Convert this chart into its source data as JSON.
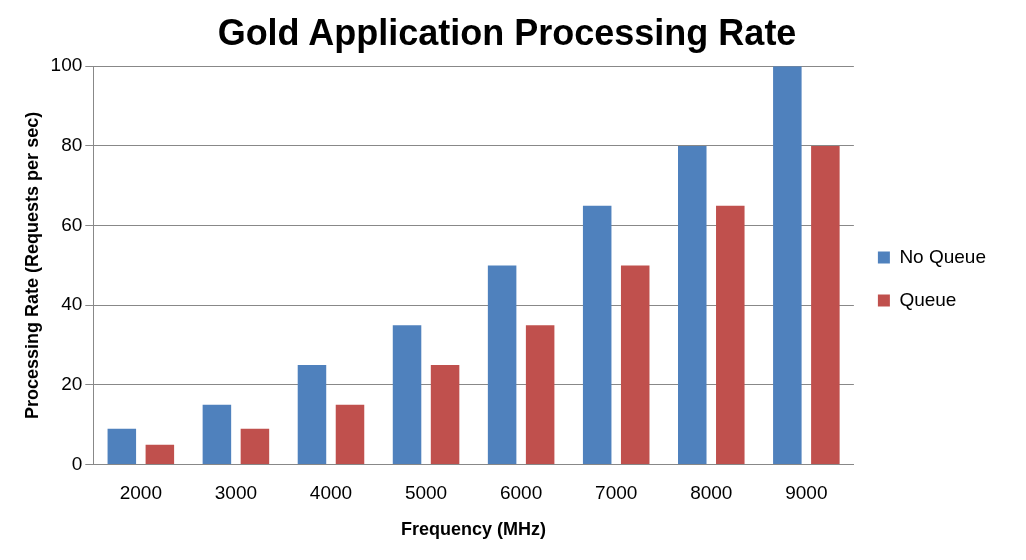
{
  "chart_data": {
    "type": "bar",
    "title": "Gold Application Processing Rate",
    "xlabel": "Frequency (MHz)",
    "ylabel": "Processing Rate (Requests per sec)",
    "categories": [
      "2000",
      "3000",
      "4000",
      "5000",
      "6000",
      "7000",
      "8000",
      "9000"
    ],
    "series": [
      {
        "name": "No Queue",
        "color": "#4f81bd",
        "values": [
          9,
          15,
          25,
          35,
          50,
          65,
          80,
          100
        ]
      },
      {
        "name": "Queue",
        "color": "#c0504d",
        "values": [
          5,
          9,
          15,
          25,
          35,
          50,
          65,
          80
        ]
      }
    ],
    "ylim": [
      0,
      100
    ],
    "yticks": [
      0,
      20,
      40,
      60,
      80,
      100
    ],
    "grid": "y",
    "legend": "right"
  }
}
